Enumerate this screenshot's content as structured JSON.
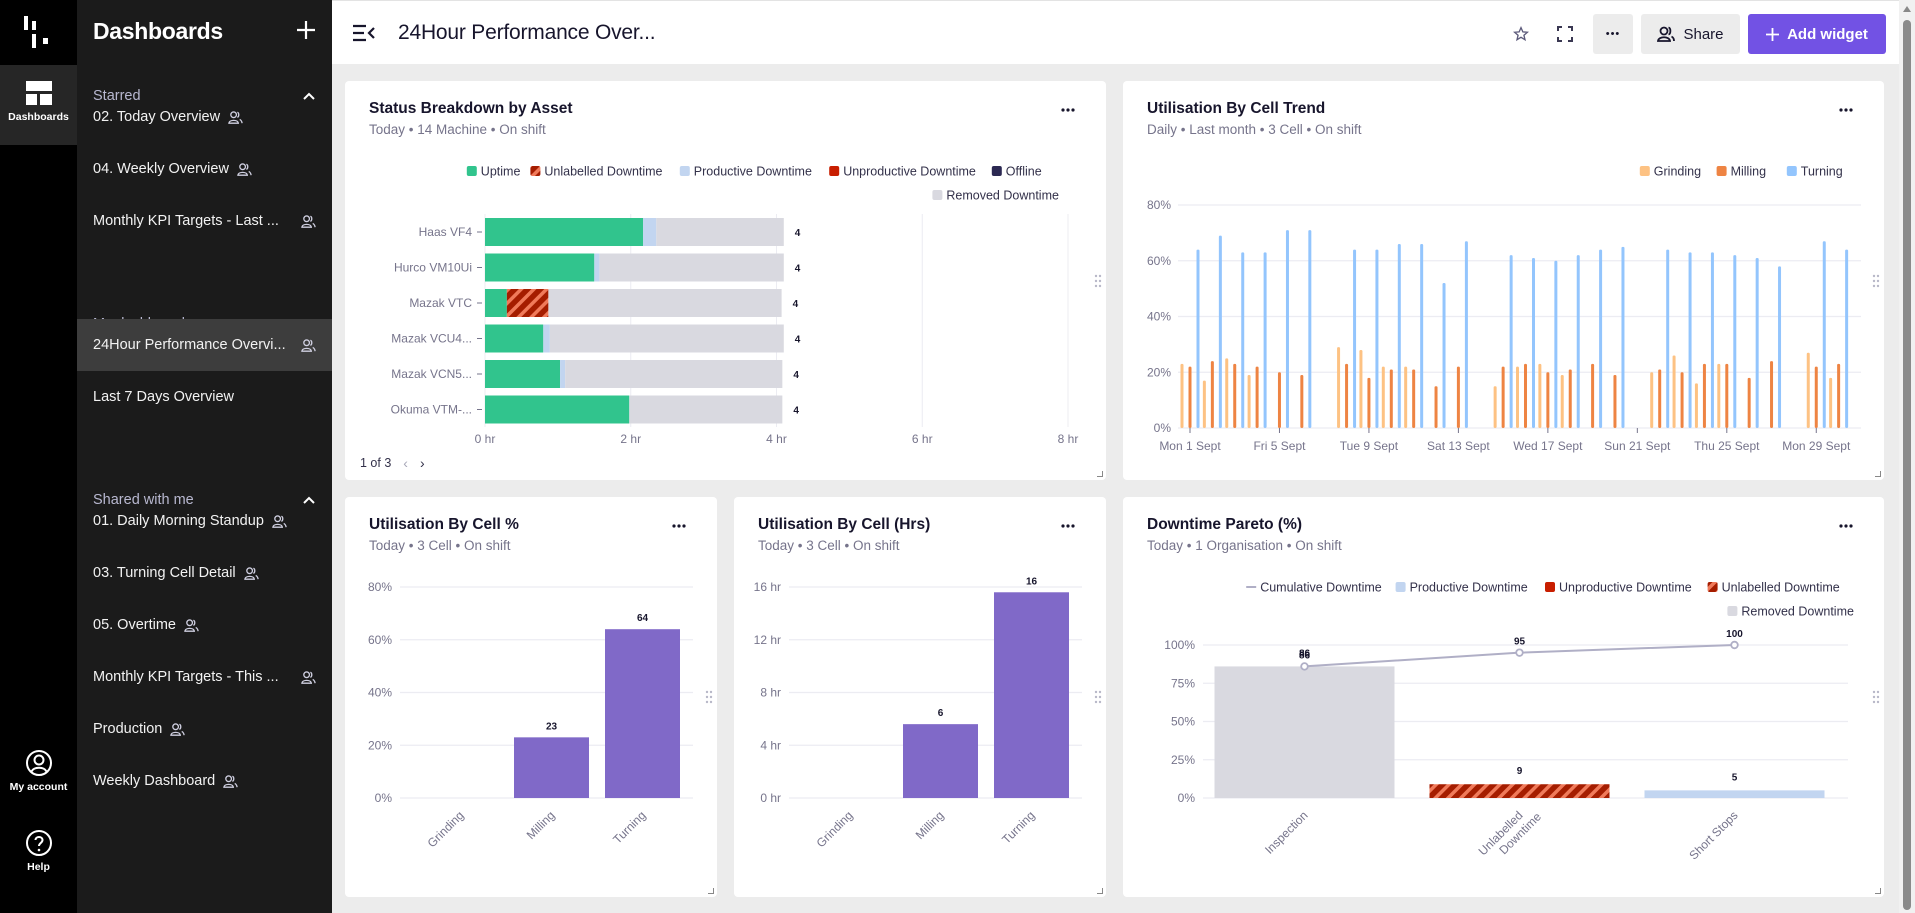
{
  "rail": {
    "items": [
      {
        "label": "Dashboards",
        "icon": "dashboard-icon",
        "active": true
      },
      {
        "label": "My account",
        "icon": "account-icon"
      },
      {
        "label": "Help",
        "icon": "help-icon"
      }
    ]
  },
  "sidebar": {
    "title": "Dashboards",
    "sections": [
      {
        "label": "Starred",
        "items": [
          {
            "label": "02. Today Overview",
            "shared": true
          },
          {
            "label": "04. Weekly Overview",
            "shared": true
          },
          {
            "label": "Monthly KPI Targets - Last ...",
            "shared": true
          }
        ]
      },
      {
        "label": "My dashboards",
        "items": [
          {
            "label": "24Hour Performance Overvi...",
            "shared": true,
            "active": true
          },
          {
            "label": "Last 7 Days Overview",
            "shared": false
          }
        ]
      },
      {
        "label": "Shared with me",
        "items": [
          {
            "label": "01. Daily Morning Standup",
            "shared": true
          },
          {
            "label": "03. Turning Cell Detail",
            "shared": true
          },
          {
            "label": "05. Overtime",
            "shared": true
          },
          {
            "label": "Monthly KPI Targets - This ...",
            "shared": true
          },
          {
            "label": "Production",
            "shared": true
          },
          {
            "label": "Weekly Dashboard",
            "shared": true
          }
        ]
      }
    ]
  },
  "header": {
    "title": "24Hour Performance Over...",
    "more_label": "•••",
    "share_label": "Share",
    "add_widget_label": "Add widget"
  },
  "colors": {
    "uptime": "#31c48d",
    "unlabelled_a": "#a51d00",
    "unlabelled_b": "#f07a5a",
    "productive": "#c2d5f0",
    "unproductive": "#c81e00",
    "offline": "#2b2852",
    "removed": "#d9d9e0",
    "grinding": "#fdc283",
    "milling": "#ee8443",
    "turning": "#93c5fd",
    "purple": "#8069c8",
    "accent": "#7252e4"
  },
  "cards": {
    "status": {
      "title": "Status Breakdown by Asset",
      "subtitle": "Today • 14 Machine • On shift",
      "pager": "1 of 3"
    },
    "trend": {
      "title": "Utilisation By Cell Trend",
      "subtitle": "Daily • Last month • 3 Cell • On shift"
    },
    "cellpct": {
      "title": "Utilisation By Cell %",
      "subtitle": "Today • 3 Cell • On shift"
    },
    "cellhrs": {
      "title": "Utilisation By Cell (Hrs)",
      "subtitle": "Today • 3 Cell • On shift"
    },
    "pareto": {
      "title": "Downtime Pareto (%)",
      "subtitle": "Today • 1 Organisation • On shift"
    }
  },
  "chart_data": [
    {
      "id": "status",
      "type": "bar",
      "orientation": "horizontal-stacked",
      "title": "Status Breakdown by Asset",
      "categories": [
        "Haas VF4",
        "Hurco VM10Ui",
        "Mazak VTC",
        "Mazak VCU4...",
        "Mazak VCN5...",
        "Okuma VTM-..."
      ],
      "legend": [
        "Uptime",
        "Unlabelled Downtime",
        "Productive Downtime",
        "Unproductive Downtime",
        "Offline",
        "Removed Downtime"
      ],
      "series": [
        {
          "name": "Uptime",
          "key": "uptime",
          "values": [
            2.17,
            1.5,
            0.3,
            0.8,
            1.03,
            1.98
          ]
        },
        {
          "name": "Unlabelled Downtime",
          "key": "unlabelled",
          "values": [
            0,
            0,
            0.57,
            0,
            0,
            0
          ]
        },
        {
          "name": "Productive Downtime",
          "key": "productive",
          "values": [
            0.18,
            0.07,
            0,
            0.09,
            0.07,
            0
          ]
        },
        {
          "name": "Unproductive Downtime",
          "key": "unproductive",
          "values": [
            0,
            0,
            0,
            0,
            0,
            0
          ]
        },
        {
          "name": "Offline",
          "key": "offline",
          "values": [
            0,
            0,
            0,
            0,
            0,
            0
          ]
        },
        {
          "name": "Removed Downtime",
          "key": "removed",
          "values": [
            1.75,
            2.53,
            3.2,
            3.21,
            2.98,
            2.1
          ]
        }
      ],
      "totals": [
        "4",
        "4",
        "4",
        "4",
        "4",
        "4"
      ],
      "xticks": [
        "0 hr",
        "2 hr",
        "4 hr",
        "6 hr",
        "8 hr"
      ],
      "xlim": [
        0,
        8
      ],
      "legend_position": "top-right"
    },
    {
      "id": "trend",
      "type": "bar",
      "title": "Utilisation By Cell Trend",
      "x": [
        "1",
        "2",
        "3",
        "4",
        "5",
        "6",
        "7",
        "8",
        "9",
        "10",
        "11",
        "12",
        "13",
        "14",
        "15",
        "16",
        "17",
        "18",
        "19",
        "20",
        "21",
        "22",
        "23",
        "24",
        "25",
        "26",
        "27",
        "28",
        "29",
        "30"
      ],
      "xticks": [
        "Mon 1 Sept",
        "Fri 5 Sept",
        "Tue 9 Sept",
        "Sat 13 Sept",
        "Wed 17 Sept",
        "Sun 21 Sept",
        "Thu 25 Sept",
        "Mon 29 Sept"
      ],
      "series": [
        {
          "name": "Grinding",
          "key": "grinding",
          "values": [
            23,
            17,
            25,
            19,
            0,
            0,
            0,
            29,
            28,
            22,
            22,
            0,
            0,
            0,
            15,
            22,
            23,
            19,
            0,
            0,
            0,
            20,
            26,
            16,
            23,
            0,
            0,
            0,
            27,
            18
          ]
        },
        {
          "name": "Milling",
          "key": "milling",
          "values": [
            22,
            24,
            23,
            22,
            20,
            19,
            0,
            23,
            18,
            21,
            21,
            15,
            22,
            0,
            22,
            23,
            20,
            21,
            23,
            19,
            0,
            21,
            20,
            23,
            23,
            18,
            24,
            0,
            22,
            23
          ]
        },
        {
          "name": "Turning",
          "key": "turning",
          "values": [
            64,
            69,
            63,
            63,
            71,
            71,
            0,
            64,
            64,
            66,
            66,
            52,
            67,
            0,
            62,
            61,
            60,
            62,
            64,
            65,
            0,
            64,
            63,
            63,
            62,
            61,
            58,
            0,
            67,
            64
          ]
        }
      ],
      "yticks": [
        "0%",
        "20%",
        "40%",
        "60%",
        "80%"
      ],
      "ylim": [
        0,
        80
      ],
      "legend_position": "top-right"
    },
    {
      "id": "cellpct",
      "type": "bar",
      "title": "Utilisation By Cell %",
      "categories": [
        "Grinding",
        "Milling",
        "Turning"
      ],
      "values": [
        0,
        23,
        64
      ],
      "labels": [
        "",
        "23",
        "64"
      ],
      "yticks": [
        "0%",
        "20%",
        "40%",
        "60%",
        "80%"
      ],
      "ylim": [
        0,
        80
      ]
    },
    {
      "id": "cellhrs",
      "type": "bar",
      "title": "Utilisation By Cell (Hrs)",
      "categories": [
        "Grinding",
        "Milling",
        "Turning"
      ],
      "values": [
        0,
        5.6,
        15.6
      ],
      "labels": [
        "",
        "6",
        "16"
      ],
      "yticks": [
        "0 hr",
        "4 hr",
        "8 hr",
        "12 hr",
        "16 hr"
      ],
      "ylim": [
        0,
        16
      ]
    },
    {
      "id": "pareto",
      "type": "bar",
      "title": "Downtime Pareto (%)",
      "categories": [
        "Inspection",
        "Unlabelled Downtime",
        "Short Stops"
      ],
      "category_lines": [
        [
          "Inspection"
        ],
        [
          "Unlabelled",
          "Downtime"
        ],
        [
          "Short Stops"
        ]
      ],
      "values": [
        86,
        9,
        5
      ],
      "bar_kinds": [
        "removed",
        "unlabelled",
        "productive"
      ],
      "cumulative": [
        86,
        95,
        100
      ],
      "legend": [
        "Cumulative Downtime",
        "Productive Downtime",
        "Unproductive Downtime",
        "Unlabelled Downtime",
        "Removed Downtime"
      ],
      "yticks": [
        "0%",
        "25%",
        "50%",
        "75%",
        "100%"
      ],
      "ylim": [
        0,
        100
      ],
      "legend_position": "top-right"
    }
  ]
}
